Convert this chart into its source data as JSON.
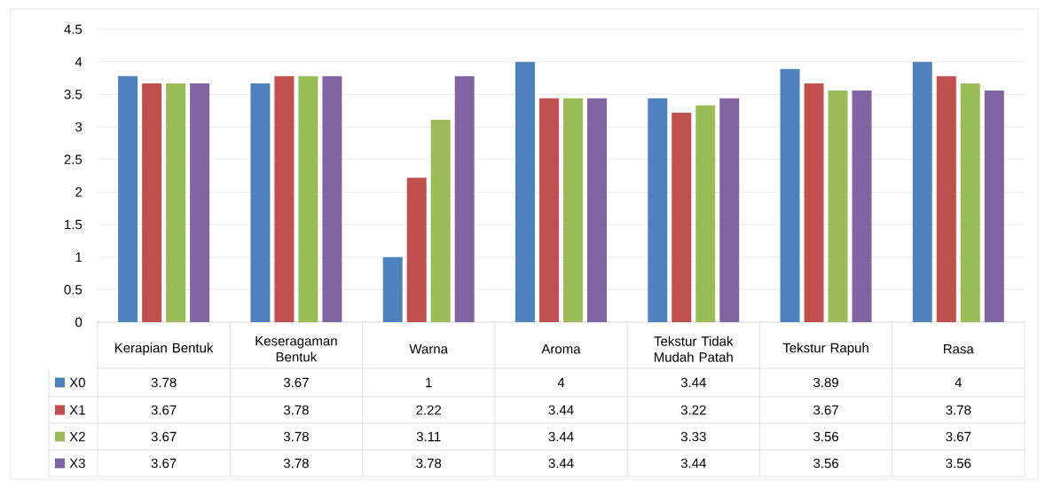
{
  "chart_data": {
    "type": "bar",
    "categories": [
      "Kerapian Bentuk",
      "Keseragaman Bentuk",
      "Warna",
      "Aroma",
      "Tekstur Tidak Mudah Patah",
      "Tekstur Rapuh",
      "Rasa"
    ],
    "series": [
      {
        "name": "X0",
        "color": "#4f81bd",
        "values": [
          3.78,
          3.67,
          1,
          4,
          3.44,
          3.89,
          4
        ]
      },
      {
        "name": "X1",
        "color": "#c0504d",
        "values": [
          3.67,
          3.78,
          2.22,
          3.44,
          3.22,
          3.67,
          3.78
        ]
      },
      {
        "name": "X2",
        "color": "#9bbb59",
        "values": [
          3.67,
          3.78,
          3.11,
          3.44,
          3.33,
          3.56,
          3.67
        ]
      },
      {
        "name": "X3",
        "color": "#8064a2",
        "values": [
          3.67,
          3.78,
          3.78,
          3.44,
          3.44,
          3.56,
          3.56
        ]
      }
    ],
    "ylim": [
      0,
      4.5
    ],
    "yticks": [
      0,
      0.5,
      1,
      1.5,
      2,
      2.5,
      3,
      3.5,
      4,
      4.5
    ],
    "grid": "y",
    "legend": "bottom",
    "data_labels": true
  }
}
